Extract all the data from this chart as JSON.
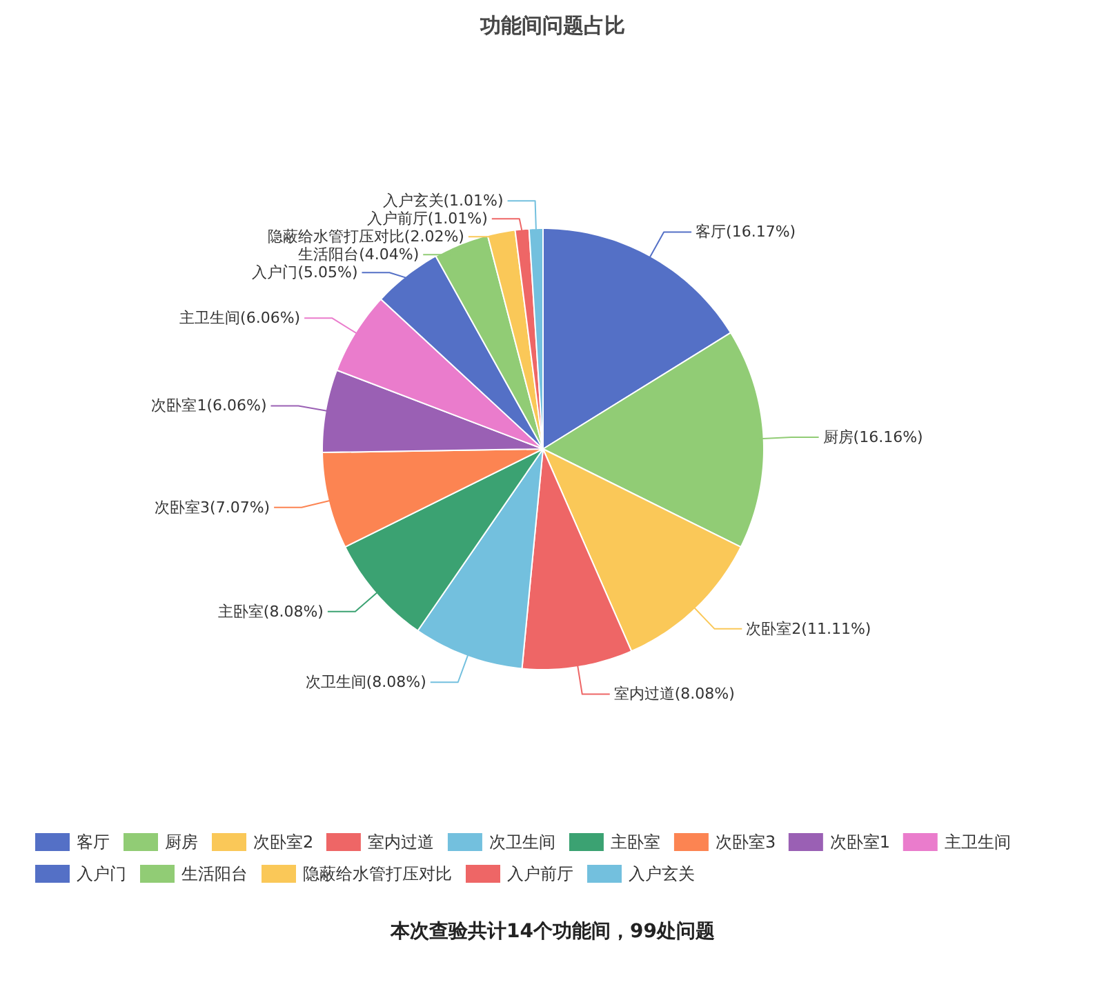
{
  "chart_data": {
    "type": "pie",
    "title": "功能间问题占比",
    "categories": [
      "客厅",
      "厨房",
      "次卧室2",
      "室内过道",
      "次卫生间",
      "主卧室",
      "次卧室3",
      "次卧室1",
      "主卫生间",
      "入户门",
      "生活阳台",
      "隐蔽给水管打压对比",
      "入户前厅",
      "入户玄关"
    ],
    "values": [
      16.17,
      16.16,
      11.11,
      8.08,
      8.08,
      8.08,
      7.07,
      6.06,
      6.06,
      5.05,
      4.04,
      2.02,
      1.01,
      1.01
    ],
    "colors": [
      "#5470c6",
      "#91cc75",
      "#fac858",
      "#ee6666",
      "#73c0de",
      "#3ba272",
      "#fc8452",
      "#9a60b4",
      "#ea7ccc",
      "#5470c6",
      "#91cc75",
      "#fac858",
      "#ee6666",
      "#73c0de"
    ],
    "value_labels": [
      "(16.17%)",
      "(16.16%)",
      "(11.11%)",
      "(8.08%)",
      "(8.08%)",
      "(8.08%)",
      "(7.07%)",
      "(6.06%)",
      "(6.06%)",
      "(5.05%)",
      "(4.04%)",
      "(2.02%)",
      "(1.01%)",
      "(1.01%)"
    ],
    "legend": "bottom",
    "annotations": [
      "本次查验共计14个功能间，99处问题"
    ]
  }
}
